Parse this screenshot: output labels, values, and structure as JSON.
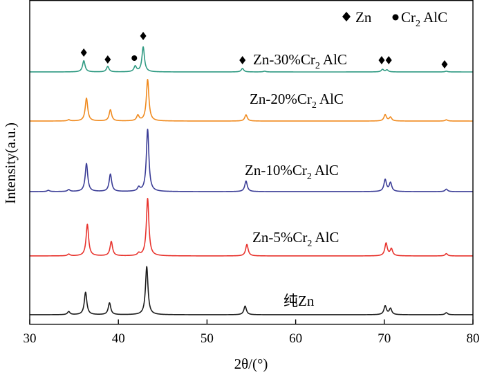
{
  "chart_data": {
    "type": "line",
    "xlabel": "2θ/(°)",
    "ylabel": "Intensity(a.u.)",
    "xlim": [
      30,
      80
    ],
    "xticks": [
      "30",
      "40",
      "50",
      "60",
      "70",
      "80"
    ],
    "yticks": [],
    "legend": {
      "position": "top-right",
      "items": [
        {
          "marker": "diamond",
          "label": "Zn"
        },
        {
          "marker": "circle",
          "label": "Cr",
          "subscript": "2",
          "suffix": " AlC"
        }
      ]
    },
    "series": [
      {
        "name": "纯Zn",
        "label_main": "纯Zn",
        "label_sub": "",
        "label_suffix": "",
        "color": "#1a1a1a",
        "peaks": [
          {
            "x": 34.4,
            "h": 0.06
          },
          {
            "x": 36.3,
            "h": 0.44
          },
          {
            "x": 39.0,
            "h": 0.23
          },
          {
            "x": 43.2,
            "h": 0.94
          },
          {
            "x": 54.3,
            "h": 0.17
          },
          {
            "x": 70.1,
            "h": 0.17
          },
          {
            "x": 70.7,
            "h": 0.12
          },
          {
            "x": 77.0,
            "h": 0.04
          }
        ]
      },
      {
        "name": "Zn-5%Cr2AlC",
        "label_main": "Zn-5%Cr",
        "label_sub": "2",
        "label_suffix": " AlC",
        "color": "#e8332d",
        "peaks": [
          {
            "x": 34.4,
            "h": 0.03
          },
          {
            "x": 36.5,
            "h": 0.55
          },
          {
            "x": 39.2,
            "h": 0.25
          },
          {
            "x": 42.3,
            "h": 0.04
          },
          {
            "x": 43.3,
            "h": 1.0
          },
          {
            "x": 54.5,
            "h": 0.2
          },
          {
            "x": 70.2,
            "h": 0.22
          },
          {
            "x": 70.8,
            "h": 0.12
          },
          {
            "x": 77.0,
            "h": 0.04
          }
        ]
      },
      {
        "name": "Zn-10%Cr2AlC",
        "label_main": "Zn-10%Cr",
        "label_sub": "2",
        "label_suffix": " AlC",
        "color": "#3a3c96",
        "peaks": [
          {
            "x": 32.1,
            "h": 0.02
          },
          {
            "x": 34.4,
            "h": 0.03
          },
          {
            "x": 36.4,
            "h": 0.45
          },
          {
            "x": 39.1,
            "h": 0.28
          },
          {
            "x": 42.3,
            "h": 0.06
          },
          {
            "x": 43.3,
            "h": 1.0
          },
          {
            "x": 54.4,
            "h": 0.17
          },
          {
            "x": 70.1,
            "h": 0.19
          },
          {
            "x": 70.7,
            "h": 0.14
          },
          {
            "x": 77.0,
            "h": 0.04
          }
        ]
      },
      {
        "name": "Zn-20%Cr2AlC",
        "label_main": "Zn-20%Cr",
        "label_sub": "2",
        "label_suffix": " AlC",
        "color": "#f08a1e",
        "peaks": [
          {
            "x": 34.4,
            "h": 0.03
          },
          {
            "x": 36.4,
            "h": 0.55
          },
          {
            "x": 39.1,
            "h": 0.27
          },
          {
            "x": 42.2,
            "h": 0.13
          },
          {
            "x": 43.3,
            "h": 1.0
          },
          {
            "x": 54.4,
            "h": 0.15
          },
          {
            "x": 70.1,
            "h": 0.15
          },
          {
            "x": 70.7,
            "h": 0.09
          },
          {
            "x": 77.0,
            "h": 0.03
          }
        ]
      },
      {
        "name": "Zn-30%Cr2AlC",
        "label_main": "Zn-30%Cr",
        "label_sub": "2",
        "label_suffix": " AlC",
        "color": "#2f9a82",
        "peaks": [
          {
            "x": 36.1,
            "h": 0.45
          },
          {
            "x": 38.8,
            "h": 0.22
          },
          {
            "x": 41.9,
            "h": 0.22
          },
          {
            "x": 42.8,
            "h": 1.0
          },
          {
            "x": 54.0,
            "h": 0.14
          },
          {
            "x": 56.5,
            "h": 0.03
          },
          {
            "x": 69.8,
            "h": 0.1
          },
          {
            "x": 70.3,
            "h": 0.08
          },
          {
            "x": 77.0,
            "h": 0.03
          }
        ]
      }
    ],
    "phase_markers": [
      {
        "x": 36.1,
        "phase": "Zn"
      },
      {
        "x": 38.8,
        "phase": "Zn"
      },
      {
        "x": 41.8,
        "phase": "Cr2AlC"
      },
      {
        "x": 42.8,
        "phase": "Zn"
      },
      {
        "x": 54.0,
        "phase": "Zn"
      },
      {
        "x": 69.7,
        "phase": "Zn"
      },
      {
        "x": 70.5,
        "phase": "Zn"
      },
      {
        "x": 76.8,
        "phase": "Zn"
      }
    ]
  }
}
